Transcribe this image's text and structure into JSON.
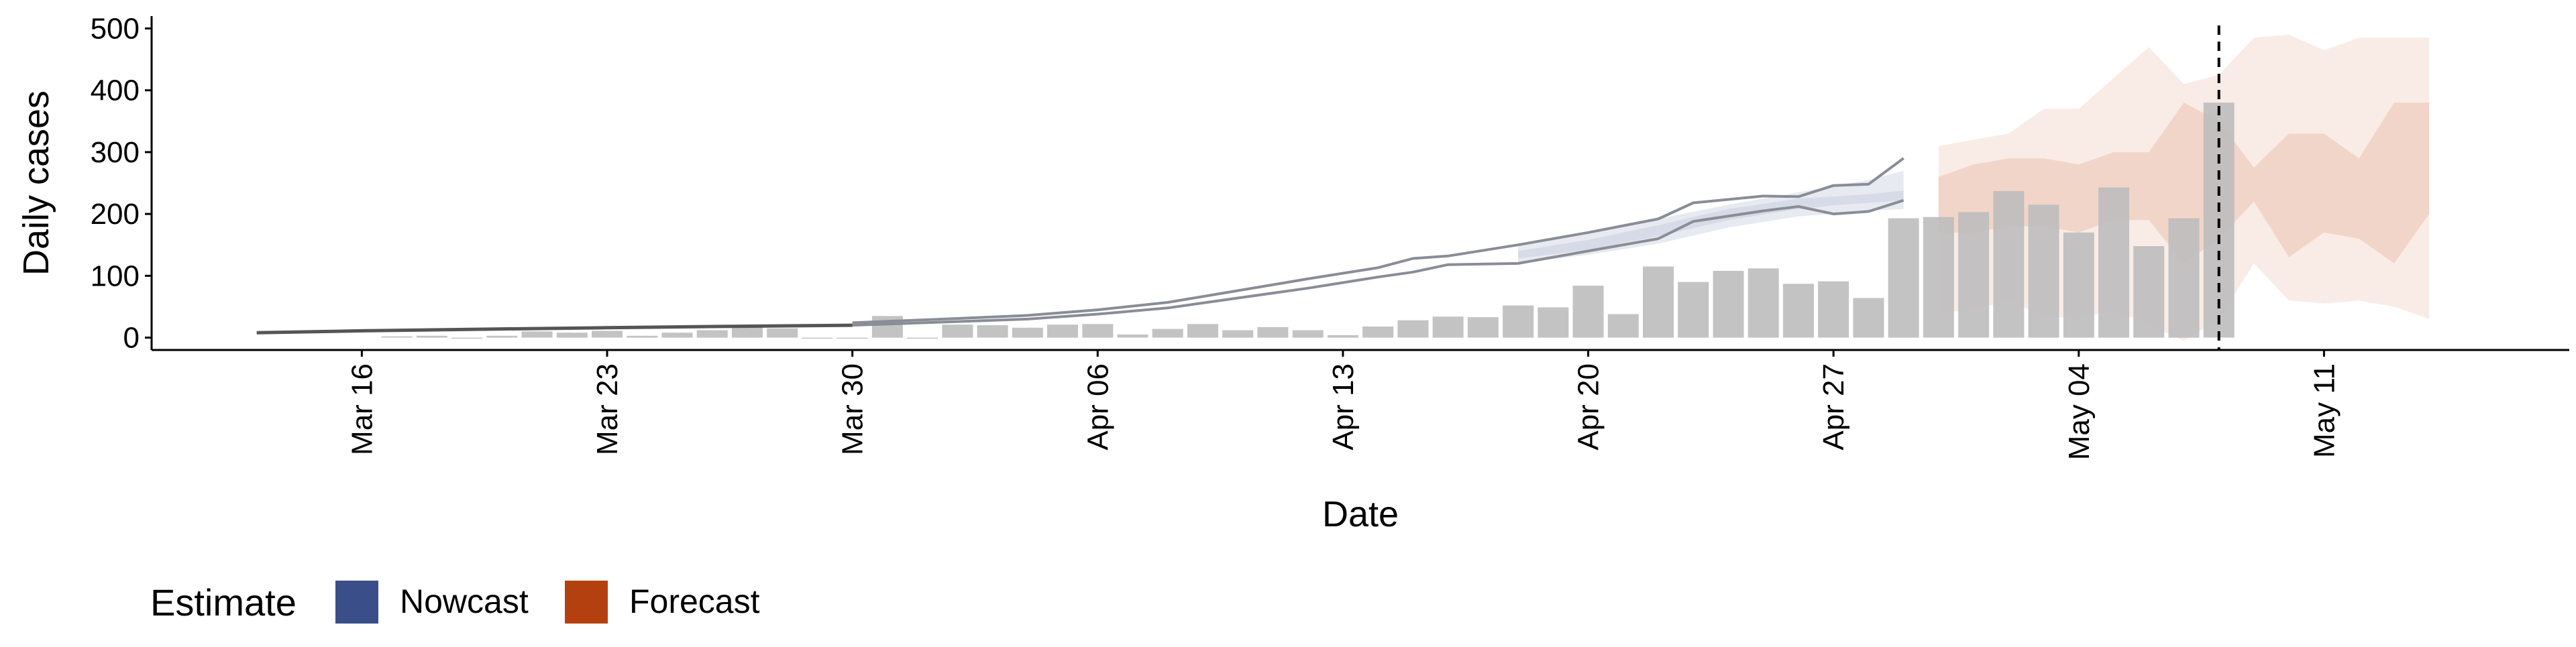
{
  "chart_data": {
    "type": "bar",
    "title": "",
    "xlabel": "Date",
    "ylabel": "Daily cases",
    "ylim": [
      -20,
      520
    ],
    "yticks": [
      0,
      100,
      200,
      300,
      400,
      500
    ],
    "ytick_labels": [
      "0",
      "100",
      "200",
      "300",
      "400",
      "500"
    ],
    "x_axis": {
      "type": "date",
      "min": "2020-03-10",
      "max": "2020-05-18"
    },
    "xticks": [
      "2020-03-16",
      "2020-03-23",
      "2020-03-30",
      "2020-04-06",
      "2020-04-13",
      "2020-04-20",
      "2020-04-27",
      "2020-05-04",
      "2020-05-11"
    ],
    "xtick_labels": [
      "Mar 16",
      "Mar 23",
      "Mar 30",
      "Apr 06",
      "Apr 13",
      "Apr 20",
      "Apr 27",
      "May 04",
      "May 11"
    ],
    "grid": false,
    "vline_date": "2020-05-08",
    "legend": {
      "title": "Estimate",
      "position": "bottom-left",
      "items": [
        {
          "label": "Nowcast",
          "color": "#3A4F8A"
        },
        {
          "label": "Forecast",
          "color": "#B5400F"
        }
      ]
    },
    "colors": {
      "bars": "#BDBDBD",
      "nowcast_outer": "#E6E8F0",
      "nowcast_inner": "#D5D9E6",
      "forecast_outer": "#F8E9E2",
      "forecast_inner": "#EFCDBF",
      "history_line": "#8A8C96",
      "early_line": "#555555"
    },
    "observed": {
      "dates": [
        "2020-03-17",
        "2020-03-18",
        "2020-03-19",
        "2020-03-20",
        "2020-03-21",
        "2020-03-22",
        "2020-03-23",
        "2020-03-24",
        "2020-03-25",
        "2020-03-26",
        "2020-03-27",
        "2020-03-28",
        "2020-03-29",
        "2020-03-30",
        "2020-03-31",
        "2020-04-01",
        "2020-04-02",
        "2020-04-03",
        "2020-04-04",
        "2020-04-05",
        "2020-04-06",
        "2020-04-07",
        "2020-04-08",
        "2020-04-09",
        "2020-04-10",
        "2020-04-11",
        "2020-04-12",
        "2020-04-13",
        "2020-04-14",
        "2020-04-15",
        "2020-04-16",
        "2020-04-17",
        "2020-04-18",
        "2020-04-19",
        "2020-04-20",
        "2020-04-21",
        "2020-04-22",
        "2020-04-23",
        "2020-04-24",
        "2020-04-25",
        "2020-04-26",
        "2020-04-27",
        "2020-04-28",
        "2020-04-29",
        "2020-04-30",
        "2020-05-01",
        "2020-05-02",
        "2020-05-03",
        "2020-05-04",
        "2020-05-05",
        "2020-05-06",
        "2020-05-07",
        "2020-05-08"
      ],
      "values": [
        2,
        3,
        0,
        3,
        10,
        8,
        11,
        3,
        8,
        12,
        17,
        15,
        0,
        0,
        35,
        0,
        21,
        20,
        16,
        21,
        22,
        5,
        14,
        22,
        12,
        17,
        12,
        4,
        18,
        28,
        34,
        33,
        52,
        49,
        84,
        38,
        115,
        90,
        108,
        112,
        87,
        91,
        64,
        193,
        195,
        203,
        237,
        215,
        170,
        243,
        148,
        193,
        380
      ]
    },
    "early_line": {
      "dates": [
        "2020-03-13",
        "2020-03-16",
        "2020-03-20",
        "2020-03-23",
        "2020-03-26",
        "2020-03-30"
      ],
      "values": [
        8,
        11,
        14,
        16,
        18,
        20
      ]
    },
    "estimate_upper": {
      "dates": [
        "2020-03-30",
        "2020-04-02",
        "2020-04-04",
        "2020-04-06",
        "2020-04-08",
        "2020-04-10",
        "2020-04-12",
        "2020-04-14",
        "2020-04-15",
        "2020-04-16",
        "2020-04-18",
        "2020-04-20",
        "2020-04-22",
        "2020-04-23",
        "2020-04-25",
        "2020-04-26",
        "2020-04-27",
        "2020-04-28",
        "2020-04-29"
      ],
      "values": [
        24,
        31,
        36,
        45,
        57,
        76,
        95,
        113,
        128,
        132,
        150,
        170,
        192,
        218,
        229,
        228,
        246,
        248,
        290
      ]
    },
    "estimate_lower": {
      "dates": [
        "2020-03-30",
        "2020-04-02",
        "2020-04-04",
        "2020-04-06",
        "2020-04-08",
        "2020-04-10",
        "2020-04-12",
        "2020-04-14",
        "2020-04-15",
        "2020-04-16",
        "2020-04-18",
        "2020-04-20",
        "2020-04-22",
        "2020-04-23",
        "2020-04-25",
        "2020-04-26",
        "2020-04-27",
        "2020-04-28",
        "2020-04-29"
      ],
      "values": [
        20,
        26,
        30,
        38,
        48,
        64,
        80,
        98,
        106,
        118,
        120,
        140,
        160,
        188,
        205,
        212,
        200,
        204,
        222
      ]
    },
    "nowcast_band_inner": {
      "dates": [
        "2020-04-18",
        "2020-04-20",
        "2020-04-22",
        "2020-04-24",
        "2020-04-26",
        "2020-04-27",
        "2020-04-28",
        "2020-04-29"
      ],
      "lower": [
        128,
        142,
        164,
        190,
        208,
        214,
        218,
        222
      ],
      "upper": [
        140,
        158,
        182,
        208,
        225,
        228,
        232,
        238
      ]
    },
    "nowcast_band_outer": {
      "dates": [
        "2020-04-18",
        "2020-04-20",
        "2020-04-22",
        "2020-04-24",
        "2020-04-26",
        "2020-04-27",
        "2020-04-28",
        "2020-04-29"
      ],
      "lower": [
        120,
        134,
        152,
        178,
        196,
        200,
        205,
        208
      ],
      "upper": [
        150,
        170,
        192,
        215,
        235,
        245,
        255,
        270
      ]
    },
    "forecast_band_outer": {
      "dates": [
        "2020-04-30",
        "2020-05-01",
        "2020-05-02",
        "2020-05-03",
        "2020-05-04",
        "2020-05-05",
        "2020-05-06",
        "2020-05-07",
        "2020-05-08",
        "2020-05-09",
        "2020-05-10",
        "2020-05-11",
        "2020-05-12",
        "2020-05-13",
        "2020-05-14"
      ],
      "lower": [
        40,
        45,
        60,
        35,
        30,
        45,
        20,
        -5,
        30,
        120,
        60,
        55,
        60,
        50,
        30
      ],
      "upper": [
        310,
        320,
        330,
        370,
        370,
        420,
        470,
        410,
        425,
        485,
        490,
        465,
        485,
        485,
        485
      ]
    },
    "forecast_band_inner": {
      "dates": [
        "2020-04-30",
        "2020-05-01",
        "2020-05-02",
        "2020-05-03",
        "2020-05-04",
        "2020-05-05",
        "2020-05-06",
        "2020-05-07",
        "2020-05-08",
        "2020-05-09",
        "2020-05-10",
        "2020-05-11",
        "2020-05-12",
        "2020-05-13",
        "2020-05-14"
      ],
      "lower": [
        170,
        170,
        180,
        180,
        170,
        190,
        190,
        120,
        160,
        220,
        130,
        170,
        160,
        120,
        200
      ],
      "upper": [
        260,
        280,
        290,
        290,
        280,
        300,
        300,
        380,
        350,
        275,
        330,
        330,
        290,
        380,
        380
      ]
    }
  }
}
